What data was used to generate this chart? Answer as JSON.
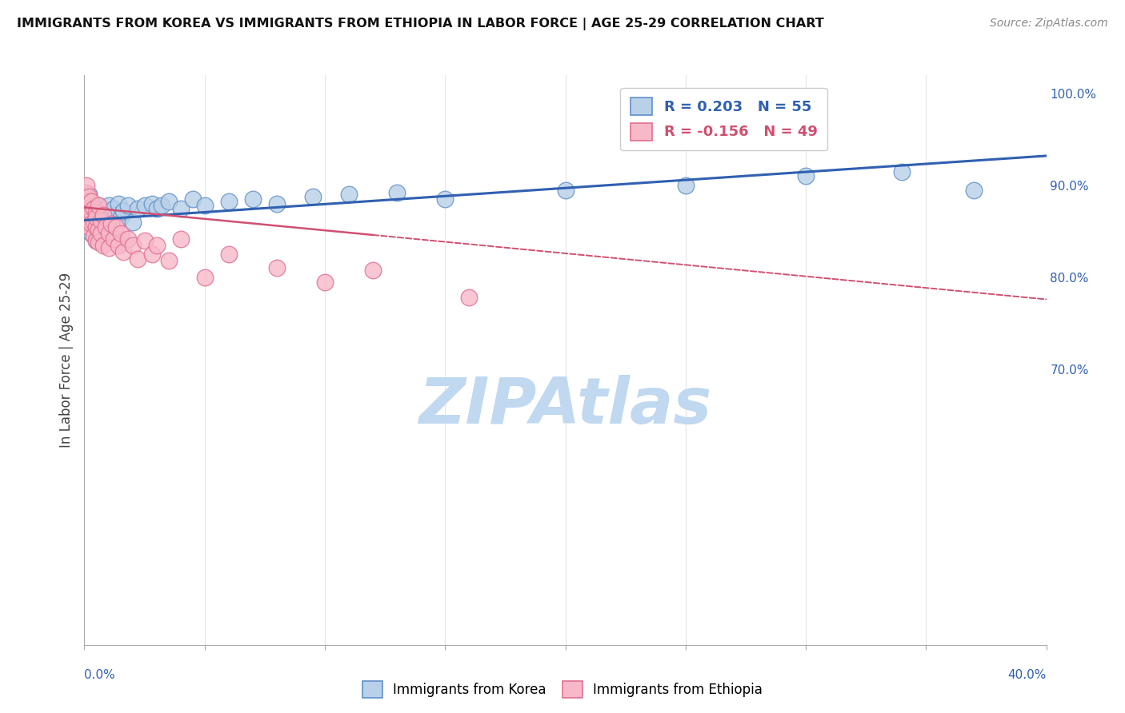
{
  "title": "IMMIGRANTS FROM KOREA VS IMMIGRANTS FROM ETHIOPIA IN LABOR FORCE | AGE 25-29 CORRELATION CHART",
  "source": "Source: ZipAtlas.com",
  "ylabel": "In Labor Force | Age 25-29",
  "korea_R": 0.203,
  "korea_N": 55,
  "ethiopia_R": -0.156,
  "ethiopia_N": 49,
  "korea_color": "#b8d0e8",
  "korea_edge_color": "#6090c8",
  "korea_line_color": "#3060b0",
  "ethiopia_color": "#f8b8c8",
  "ethiopia_edge_color": "#e07090",
  "ethiopia_line_color": "#d05070",
  "watermark": "ZIPAtlas",
  "watermark_color": "#c0d8f0",
  "korea_x": [
    0.0005,
    0.001,
    0.001,
    0.001,
    0.002,
    0.002,
    0.002,
    0.002,
    0.003,
    0.003,
    0.003,
    0.003,
    0.004,
    0.004,
    0.004,
    0.005,
    0.005,
    0.005,
    0.006,
    0.006,
    0.007,
    0.007,
    0.008,
    0.009,
    0.01,
    0.01,
    0.011,
    0.012,
    0.013,
    0.014,
    0.015,
    0.016,
    0.018,
    0.02,
    0.022,
    0.025,
    0.028,
    0.03,
    0.032,
    0.035,
    0.04,
    0.045,
    0.05,
    0.06,
    0.07,
    0.08,
    0.095,
    0.11,
    0.13,
    0.15,
    0.2,
    0.25,
    0.3,
    0.34,
    0.37
  ],
  "korea_y": [
    0.868,
    0.855,
    0.875,
    0.885,
    0.87,
    0.858,
    0.878,
    0.89,
    0.862,
    0.875,
    0.848,
    0.86,
    0.872,
    0.855,
    0.865,
    0.875,
    0.852,
    0.84,
    0.865,
    0.878,
    0.855,
    0.845,
    0.862,
    0.87,
    0.855,
    0.878,
    0.862,
    0.875,
    0.868,
    0.88,
    0.865,
    0.872,
    0.878,
    0.86,
    0.875,
    0.878,
    0.88,
    0.875,
    0.878,
    0.882,
    0.875,
    0.885,
    0.878,
    0.882,
    0.885,
    0.88,
    0.888,
    0.89,
    0.892,
    0.885,
    0.895,
    0.9,
    0.91,
    0.915,
    0.895
  ],
  "ethiopia_x": [
    0.0003,
    0.0005,
    0.001,
    0.001,
    0.001,
    0.002,
    0.002,
    0.002,
    0.002,
    0.003,
    0.003,
    0.003,
    0.004,
    0.004,
    0.004,
    0.005,
    0.005,
    0.005,
    0.005,
    0.006,
    0.006,
    0.006,
    0.007,
    0.007,
    0.008,
    0.008,
    0.009,
    0.01,
    0.01,
    0.011,
    0.012,
    0.013,
    0.014,
    0.015,
    0.016,
    0.018,
    0.02,
    0.022,
    0.025,
    0.028,
    0.03,
    0.035,
    0.04,
    0.05,
    0.06,
    0.08,
    0.1,
    0.12,
    0.16
  ],
  "ethiopia_y": [
    0.88,
    0.892,
    0.9,
    0.878,
    0.865,
    0.888,
    0.875,
    0.862,
    0.855,
    0.882,
    0.87,
    0.858,
    0.875,
    0.86,
    0.845,
    0.87,
    0.855,
    0.84,
    0.865,
    0.878,
    0.852,
    0.838,
    0.862,
    0.848,
    0.868,
    0.835,
    0.855,
    0.848,
    0.832,
    0.858,
    0.842,
    0.855,
    0.835,
    0.848,
    0.828,
    0.842,
    0.835,
    0.82,
    0.84,
    0.825,
    0.835,
    0.818,
    0.842,
    0.8,
    0.825,
    0.81,
    0.795,
    0.808,
    0.778
  ],
  "xmin": 0.0,
  "xmax": 0.4,
  "ymin": 0.4,
  "ymax": 1.02,
  "korea_trend_x": [
    0.0,
    0.4
  ],
  "korea_trend_y": [
    0.862,
    0.932
  ],
  "ethiopia_trend_x": [
    0.0,
    0.4
  ],
  "ethiopia_trend_y": [
    0.876,
    0.776
  ],
  "legend_korea_label": "R = 0.203   N = 55",
  "legend_ethiopia_label": "R = -0.156   N = 49"
}
